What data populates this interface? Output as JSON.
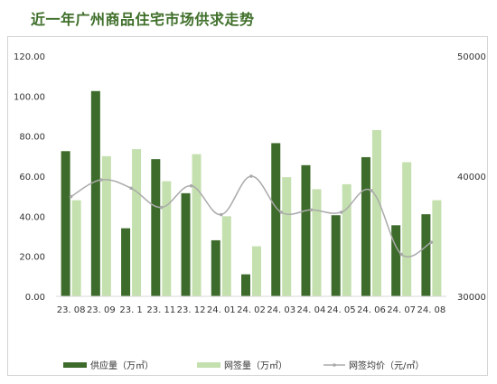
{
  "title": "近一年广州商品住宅市场供求走势",
  "chart_data": {
    "type": "bar",
    "categories": [
      "23.08",
      "23.09",
      "23.1",
      "23.11",
      "23.12",
      "24.01",
      "24.02",
      "24.03",
      "24.04",
      "24.05",
      "24.06",
      "24.07",
      "24.08"
    ],
    "series": [
      {
        "name": "供应量（万㎡）",
        "type": "bar",
        "axis": "left",
        "color": "#3d6b2b",
        "values": [
          72.5,
          102.5,
          34.0,
          68.5,
          51.5,
          28.0,
          11.0,
          76.5,
          65.5,
          40.5,
          69.5,
          35.5,
          41.0
        ]
      },
      {
        "name": "网签量（万㎡）",
        "type": "bar",
        "axis": "left",
        "color": "#c4e0ae",
        "values": [
          48.0,
          70.0,
          73.5,
          57.5,
          71.0,
          40.0,
          25.0,
          59.5,
          53.5,
          56.0,
          83.0,
          67.0,
          48.0
        ]
      },
      {
        "name": "网签均价（元/㎡）",
        "type": "line",
        "axis": "right",
        "color": "#aaaaaa",
        "values": [
          38300,
          39700,
          39000,
          37400,
          39200,
          36800,
          40000,
          37000,
          37200,
          37000,
          38800,
          33500,
          34500
        ]
      }
    ],
    "y_left": {
      "min": 0,
      "max": 120,
      "step": 20,
      "tick_labels": [
        "0.00",
        "20.00",
        "40.00",
        "60.00",
        "80.00",
        "100.00",
        "120.00"
      ]
    },
    "y_right": {
      "min": 30000,
      "max": 50000,
      "ticks": [
        30000,
        40000,
        50000
      ],
      "tick_labels": [
        "30000",
        "40000",
        "50000"
      ]
    },
    "x_tick_labels": [
      "23. 08",
      "23. 09",
      "23. 1",
      "23. 11",
      "23. 12",
      "24. 01",
      "24. 02",
      "24. 03",
      "24. 04",
      "24. 05",
      "24. 06",
      "24. 07",
      "24. 08"
    ],
    "grid": false,
    "legend_position": "bottom"
  }
}
